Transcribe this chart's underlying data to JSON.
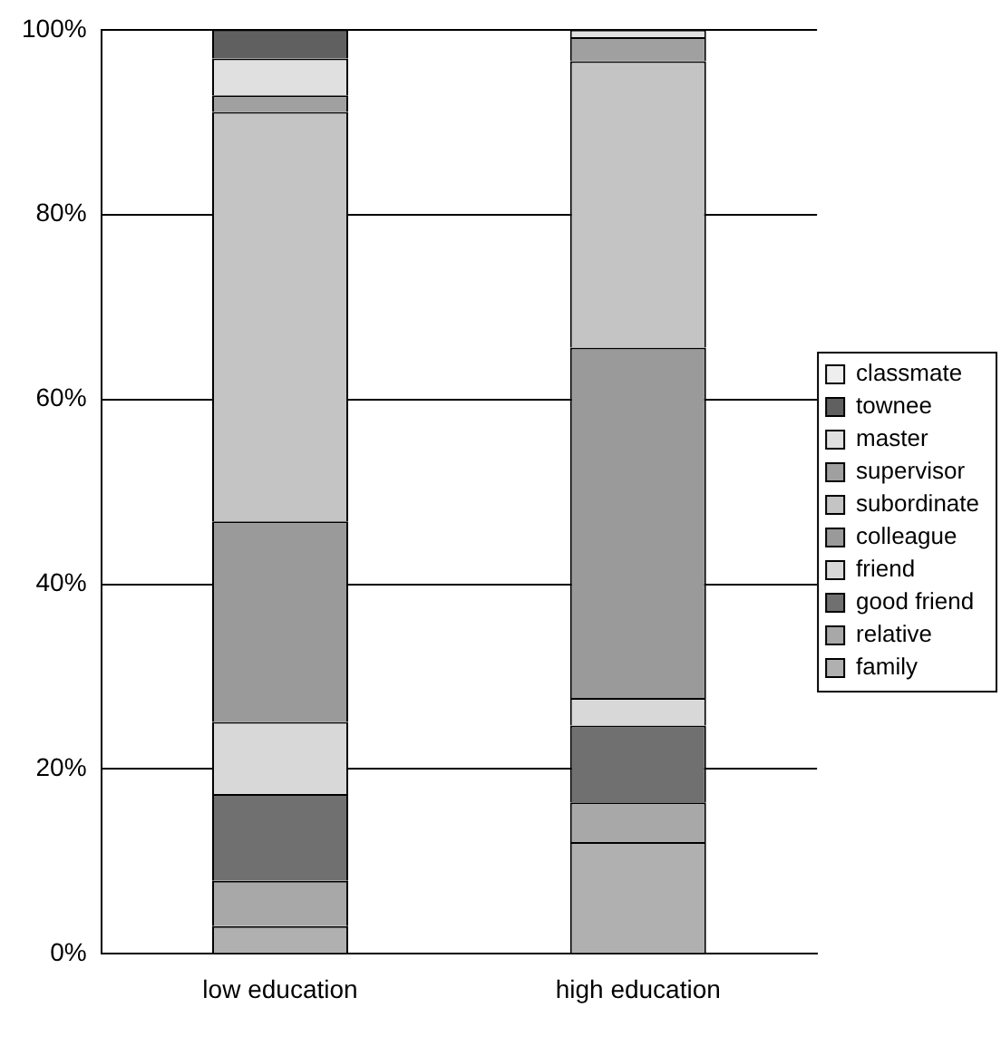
{
  "chart_data": {
    "type": "bar",
    "stacked": true,
    "categories": [
      "low education",
      "high education"
    ],
    "series": [
      {
        "name": "family",
        "color": "#b0b0b0",
        "values": [
          3.0,
          12.1
        ]
      },
      {
        "name": "relative",
        "color": "#a8a8a8",
        "values": [
          4.9,
          4.3
        ]
      },
      {
        "name": "good friend",
        "color": "#707070",
        "values": [
          9.4,
          8.3
        ]
      },
      {
        "name": "friend",
        "color": "#d8d8d8",
        "values": [
          7.8,
          3.0
        ]
      },
      {
        "name": "colleague",
        "color": "#9a9a9a",
        "values": [
          21.7,
          37.9
        ]
      },
      {
        "name": "subordinate",
        "color": "#c4c4c4",
        "values": [
          44.3,
          31.0
        ]
      },
      {
        "name": "supervisor",
        "color": "#a0a0a0",
        "values": [
          1.8,
          2.6
        ]
      },
      {
        "name": "master",
        "color": "#e0e0e0",
        "values": [
          4.0,
          0.8
        ]
      },
      {
        "name": "townee",
        "color": "#606060",
        "values": [
          3.1,
          0
        ]
      },
      {
        "name": "classmate",
        "color": "#eeeeee",
        "values": [
          0,
          0
        ]
      }
    ],
    "ylim": [
      0,
      100
    ],
    "yticks": [
      {
        "value": 0,
        "label": "0%"
      },
      {
        "value": 20,
        "label": "20%"
      },
      {
        "value": 40,
        "label": "40%"
      },
      {
        "value": 60,
        "label": "60%"
      },
      {
        "value": 80,
        "label": "80%"
      },
      {
        "value": 100,
        "label": "100%"
      }
    ],
    "grid": "y",
    "legend": "right"
  }
}
